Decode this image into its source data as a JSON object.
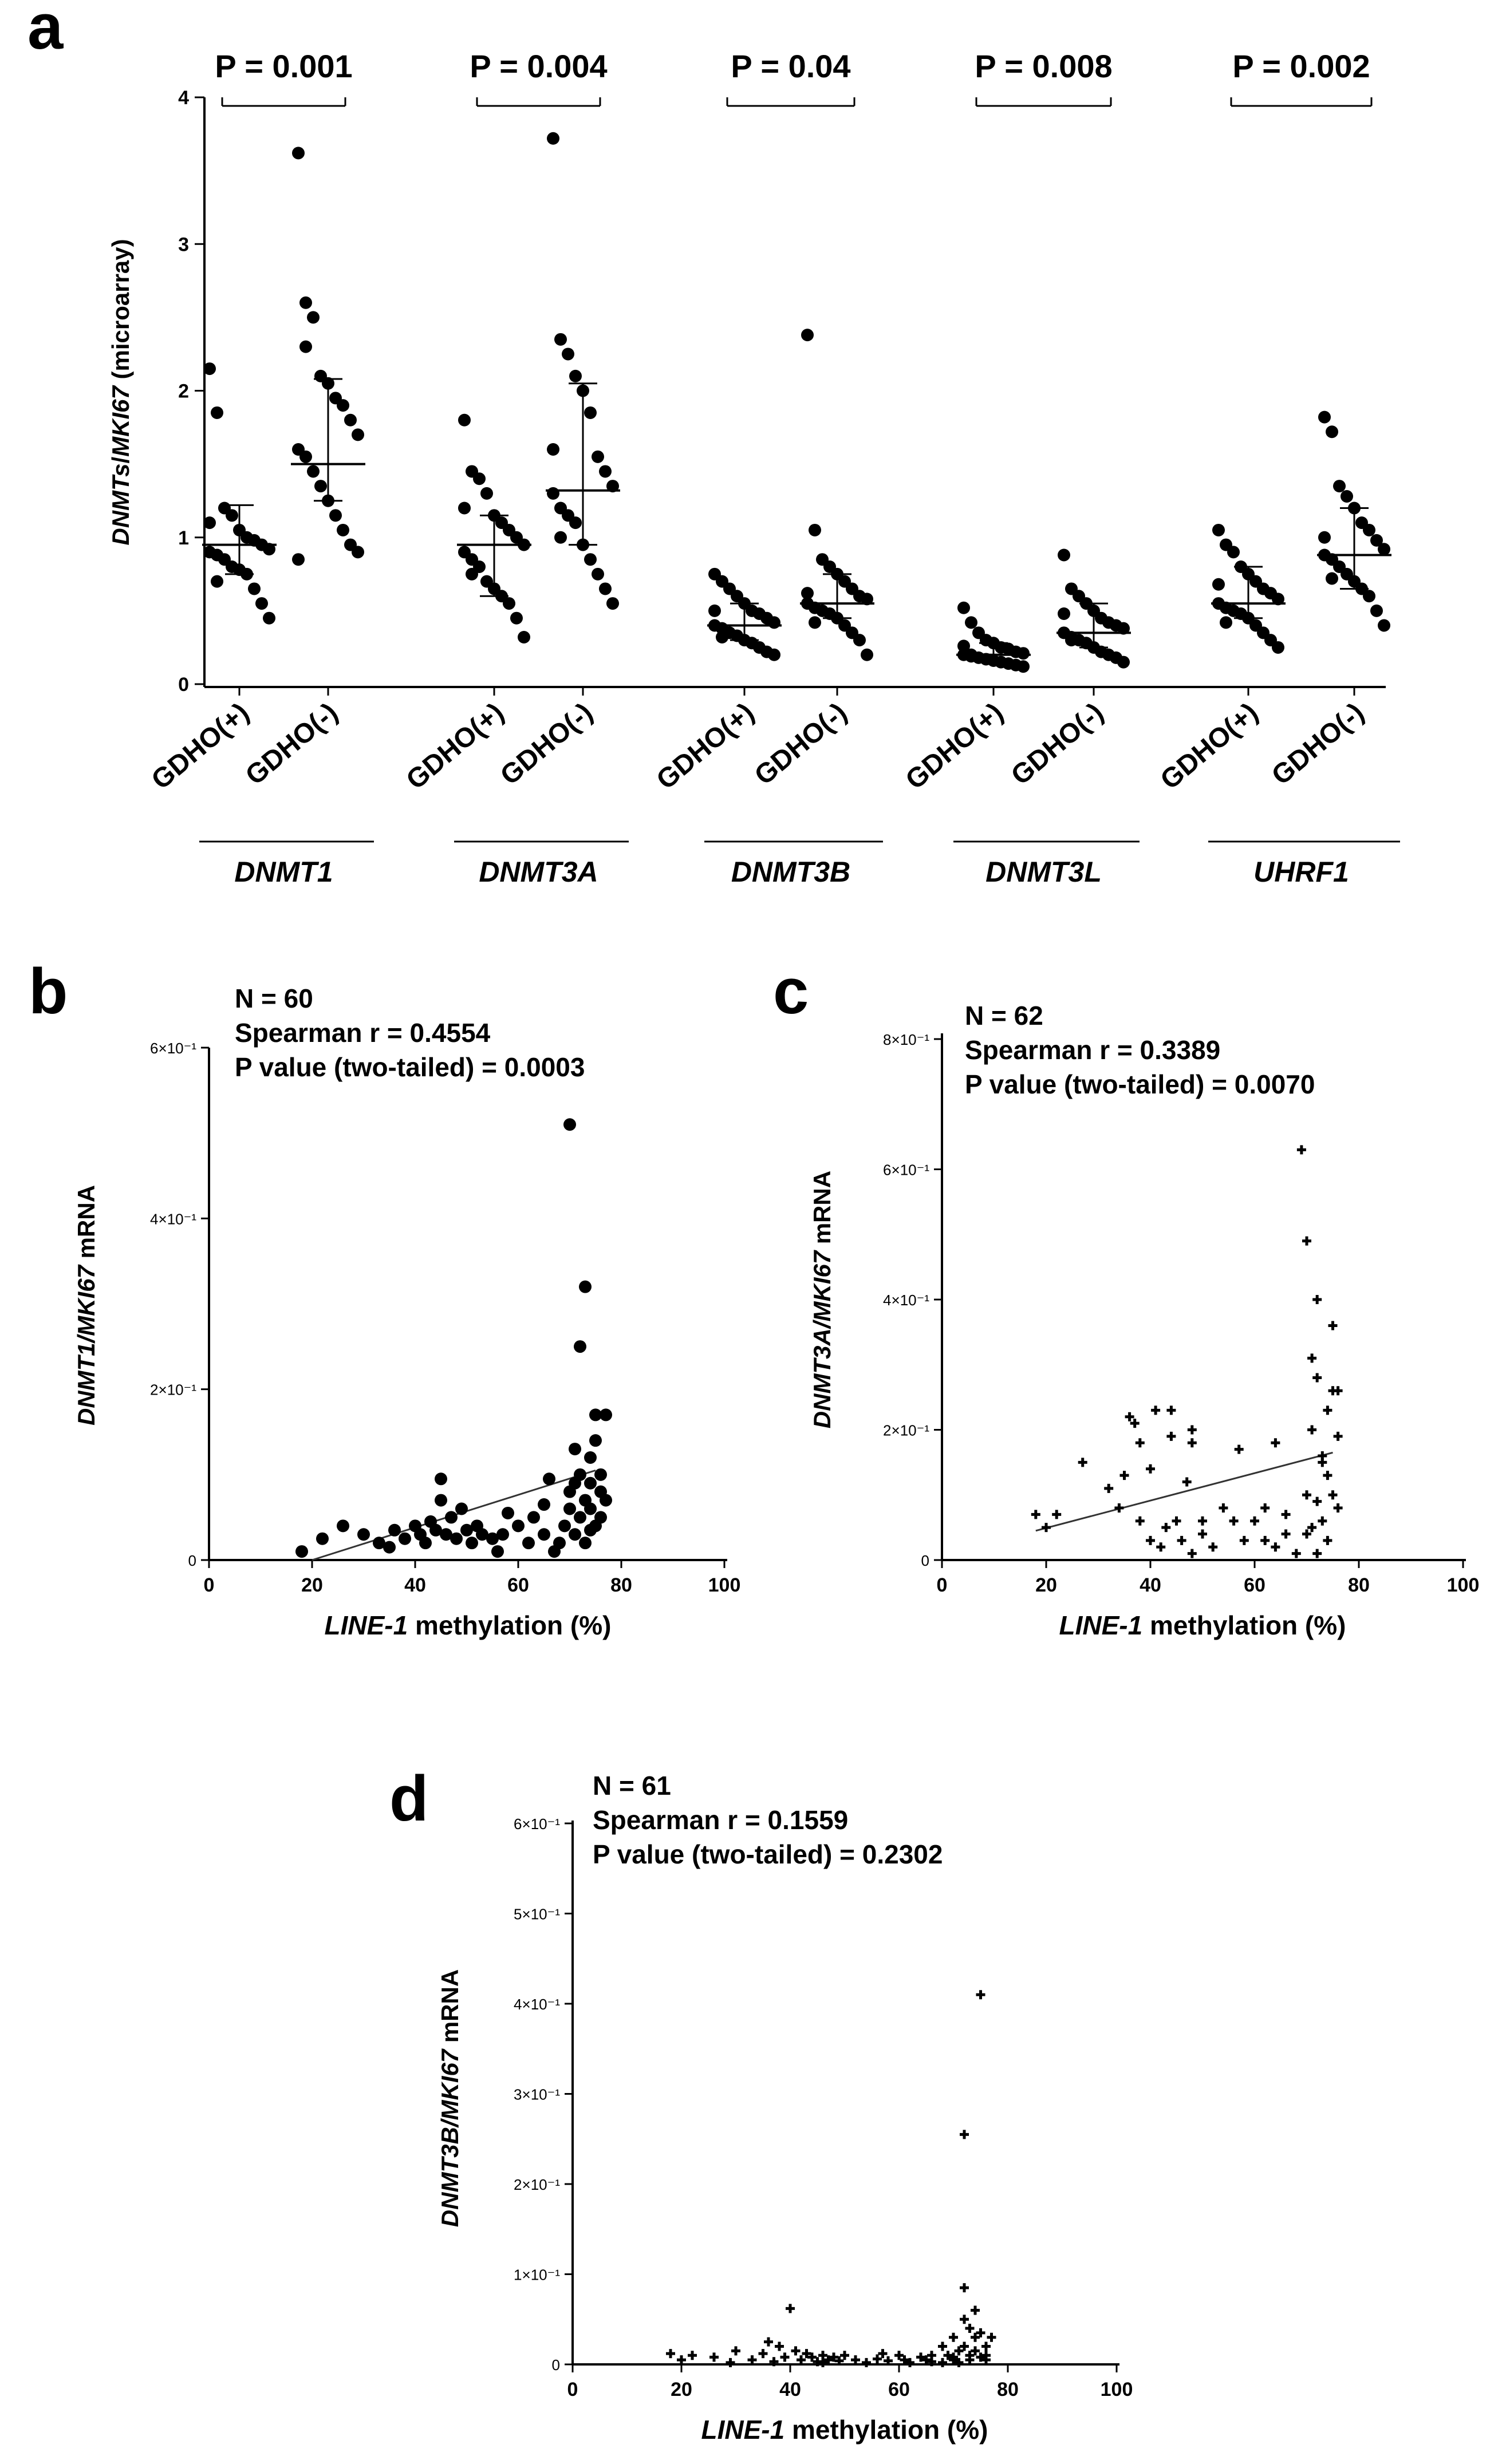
{
  "chart_data": [
    {
      "panel": "a",
      "type": "scatter",
      "ylabel_italic": "DNMTs",
      "ylabel_mid": "/",
      "ylabel_italic2": "MKI67",
      "ylabel_rest": " (microarray)",
      "ylim": [
        0,
        4
      ],
      "yticks": [
        "0",
        "1",
        "2",
        "3",
        "4"
      ],
      "x_tick_labels": [
        "GDHO(+)",
        "GDHO(-)"
      ],
      "groups": [
        {
          "gene": "DNMT1",
          "p": "P = 0.001",
          "pos": [
            2.15,
            1.85,
            1.2,
            1.15,
            1.05,
            1.0,
            0.98,
            0.95,
            0.92,
            0.9,
            0.88,
            0.85,
            0.8,
            0.78,
            0.75,
            0.65,
            0.55,
            0.45,
            1.1,
            0.7
          ],
          "neg": [
            3.62,
            2.6,
            2.5,
            2.1,
            2.05,
            1.95,
            1.9,
            1.8,
            1.7,
            1.6,
            1.55,
            1.45,
            1.35,
            1.25,
            1.15,
            1.05,
            0.95,
            0.9,
            0.85,
            2.3
          ],
          "pos_stats": [
            0.75,
            0.95,
            1.22
          ],
          "neg_stats": [
            1.25,
            1.5,
            2.08
          ]
        },
        {
          "gene": "DNMT3A",
          "p": "P = 0.004",
          "pos": [
            1.8,
            1.45,
            1.4,
            1.3,
            1.15,
            1.1,
            1.05,
            1.0,
            0.95,
            0.9,
            0.85,
            0.8,
            0.7,
            0.65,
            0.6,
            0.55,
            0.45,
            0.32,
            1.2,
            0.75
          ],
          "neg": [
            3.72,
            2.35,
            2.25,
            2.1,
            2.0,
            1.85,
            1.55,
            1.45,
            1.35,
            1.3,
            1.2,
            1.15,
            1.1,
            0.95,
            0.85,
            0.75,
            0.65,
            0.55,
            1.6,
            1.0
          ],
          "pos_stats": [
            0.6,
            0.95,
            1.15
          ],
          "neg_stats": [
            0.95,
            1.32,
            2.05
          ]
        },
        {
          "gene": "DNMT3B",
          "p": "P = 0.04",
          "pos": [
            0.75,
            0.7,
            0.65,
            0.6,
            0.55,
            0.5,
            0.48,
            0.45,
            0.42,
            0.4,
            0.38,
            0.35,
            0.33,
            0.3,
            0.28,
            0.25,
            0.22,
            0.2,
            0.5,
            0.32
          ],
          "neg": [
            2.38,
            1.05,
            0.85,
            0.8,
            0.75,
            0.7,
            0.65,
            0.6,
            0.58,
            0.55,
            0.52,
            0.5,
            0.48,
            0.45,
            0.4,
            0.35,
            0.3,
            0.2,
            0.62,
            0.42
          ],
          "pos_stats": [
            0.3,
            0.4,
            0.55
          ],
          "neg_stats": [
            0.45,
            0.55,
            0.75
          ]
        },
        {
          "gene": "DNMT3L",
          "p": "P = 0.008",
          "pos": [
            0.52,
            0.42,
            0.35,
            0.3,
            0.28,
            0.25,
            0.24,
            0.22,
            0.21,
            0.2,
            0.19,
            0.18,
            0.17,
            0.16,
            0.15,
            0.14,
            0.13,
            0.12,
            0.26,
            0.2
          ],
          "neg": [
            0.88,
            0.65,
            0.6,
            0.55,
            0.5,
            0.45,
            0.42,
            0.4,
            0.38,
            0.35,
            0.32,
            0.3,
            0.28,
            0.25,
            0.22,
            0.2,
            0.18,
            0.15,
            0.48,
            0.3
          ],
          "pos_stats": [
            0.15,
            0.2,
            0.28
          ],
          "neg_stats": [
            0.25,
            0.35,
            0.55
          ]
        },
        {
          "gene": "UHRF1",
          "p": "P = 0.002",
          "pos": [
            1.05,
            0.95,
            0.9,
            0.8,
            0.75,
            0.7,
            0.65,
            0.62,
            0.58,
            0.55,
            0.52,
            0.5,
            0.48,
            0.45,
            0.4,
            0.35,
            0.3,
            0.25,
            0.68,
            0.42
          ],
          "neg": [
            1.82,
            1.72,
            1.35,
            1.28,
            1.2,
            1.1,
            1.05,
            0.98,
            0.92,
            0.88,
            0.85,
            0.8,
            0.75,
            0.7,
            0.65,
            0.6,
            0.5,
            0.4,
            1.0,
            0.72
          ],
          "pos_stats": [
            0.45,
            0.55,
            0.8
          ],
          "neg_stats": [
            0.65,
            0.88,
            1.2
          ]
        }
      ]
    },
    {
      "panel": "b",
      "type": "scatter",
      "stats": [
        "N = 60",
        "Spearman r = 0.4554",
        "P value (two-tailed) = 0.0003"
      ],
      "ylabel_it": "DNMT1/MKI67",
      "ylabel_rest": " mRNA",
      "xlabel_it": "LINE-1",
      "xlabel_rest": " methylation (%)",
      "xlim": [
        0,
        100
      ],
      "ylim": [
        0,
        6
      ],
      "xticks": [
        "0",
        "20",
        "40",
        "60",
        "80",
        "100"
      ],
      "yticks": [
        "0",
        "2×10⁻¹",
        "4×10⁻¹",
        "6×10⁻¹"
      ],
      "trend": [
        [
          20,
          0.0
        ],
        [
          75,
          1.05
        ]
      ],
      "points": [
        [
          18,
          0.1
        ],
        [
          22,
          0.25
        ],
        [
          26,
          0.4
        ],
        [
          30,
          0.3
        ],
        [
          33,
          0.2
        ],
        [
          36,
          0.35
        ],
        [
          38,
          0.25
        ],
        [
          40,
          0.4
        ],
        [
          41,
          0.3
        ],
        [
          42,
          0.2
        ],
        [
          43,
          0.45
        ],
        [
          44,
          0.35
        ],
        [
          45,
          0.95
        ],
        [
          46,
          0.3
        ],
        [
          47,
          0.5
        ],
        [
          48,
          0.25
        ],
        [
          49,
          0.6
        ],
        [
          50,
          0.35
        ],
        [
          51,
          0.2
        ],
        [
          52,
          0.4
        ],
        [
          53,
          0.3
        ],
        [
          55,
          0.25
        ],
        [
          56,
          0.1
        ],
        [
          57,
          0.3
        ],
        [
          60,
          0.4
        ],
        [
          62,
          0.2
        ],
        [
          63,
          0.5
        ],
        [
          65,
          0.3
        ],
        [
          66,
          0.95
        ],
        [
          67,
          0.1
        ],
        [
          68,
          0.2
        ],
        [
          69,
          0.4
        ],
        [
          70,
          0.6
        ],
        [
          70,
          0.8
        ],
        [
          70,
          5.1
        ],
        [
          71,
          0.3
        ],
        [
          71,
          0.9
        ],
        [
          72,
          0.5
        ],
        [
          72,
          1.0
        ],
        [
          72,
          2.5
        ],
        [
          73,
          0.7
        ],
        [
          73,
          3.2
        ],
        [
          73,
          0.2
        ],
        [
          74,
          1.2
        ],
        [
          74,
          0.6
        ],
        [
          74,
          0.9
        ],
        [
          75,
          1.4
        ],
        [
          75,
          0.4
        ],
        [
          75,
          1.7
        ],
        [
          76,
          0.8
        ],
        [
          76,
          0.5
        ],
        [
          76,
          1.0
        ],
        [
          77,
          0.7
        ],
        [
          77,
          1.7
        ],
        [
          74,
          0.35
        ],
        [
          58,
          0.55
        ],
        [
          35,
          0.15
        ],
        [
          45,
          0.7
        ],
        [
          65,
          0.65
        ],
        [
          71,
          1.3
        ]
      ]
    },
    {
      "panel": "c",
      "type": "scatter",
      "stats": [
        "N = 62",
        "Spearman r = 0.3389",
        "P value (two-tailed) = 0.0070"
      ],
      "ylabel_it": "DNMT3A/MKI67",
      "ylabel_rest": " mRNA",
      "xlabel_it": "LINE-1",
      "xlabel_rest": " methylation (%)",
      "xlim": [
        0,
        100
      ],
      "ylim": [
        0,
        8
      ],
      "xticks": [
        "0",
        "20",
        "40",
        "60",
        "80",
        "100"
      ],
      "yticks": [
        "0",
        "2×10⁻¹",
        "4×10⁻¹",
        "6×10⁻¹",
        "8×10⁻¹"
      ],
      "trend": [
        [
          18,
          0.45
        ],
        [
          75,
          1.65
        ]
      ],
      "points": [
        [
          18,
          0.7
        ],
        [
          20,
          0.5
        ],
        [
          22,
          0.7
        ],
        [
          27,
          1.5
        ],
        [
          32,
          1.1
        ],
        [
          34,
          0.8
        ],
        [
          36,
          2.2
        ],
        [
          37,
          2.1
        ],
        [
          38,
          1.8
        ],
        [
          38,
          0.6
        ],
        [
          40,
          1.4
        ],
        [
          40,
          0.3
        ],
        [
          41,
          2.3
        ],
        [
          42,
          0.2
        ],
        [
          43,
          0.5
        ],
        [
          44,
          2.3
        ],
        [
          44,
          1.9
        ],
        [
          45,
          0.6
        ],
        [
          46,
          0.3
        ],
        [
          47,
          1.2
        ],
        [
          48,
          1.8
        ],
        [
          48,
          0.1
        ],
        [
          50,
          0.4
        ],
        [
          50,
          0.6
        ],
        [
          52,
          0.2
        ],
        [
          54,
          0.8
        ],
        [
          56,
          0.6
        ],
        [
          58,
          0.3
        ],
        [
          60,
          0.6
        ],
        [
          62,
          0.3
        ],
        [
          62,
          0.8
        ],
        [
          64,
          1.8
        ],
        [
          64,
          0.2
        ],
        [
          66,
          0.7
        ],
        [
          68,
          0.1
        ],
        [
          69,
          6.3
        ],
        [
          70,
          0.4
        ],
        [
          70,
          1.0
        ],
        [
          70,
          4.9
        ],
        [
          71,
          2.0
        ],
        [
          71,
          0.5
        ],
        [
          71,
          3.1
        ],
        [
          72,
          0.9
        ],
        [
          72,
          2.8
        ],
        [
          72,
          4.0
        ],
        [
          72,
          0.1
        ],
        [
          73,
          1.6
        ],
        [
          73,
          0.6
        ],
        [
          74,
          1.3
        ],
        [
          74,
          2.3
        ],
        [
          74,
          0.3
        ],
        [
          75,
          2.6
        ],
        [
          75,
          3.6
        ],
        [
          75,
          1.0
        ],
        [
          76,
          2.6
        ],
        [
          76,
          0.8
        ],
        [
          76,
          1.9
        ],
        [
          73,
          1.5
        ],
        [
          57,
          1.7
        ],
        [
          35,
          1.3
        ],
        [
          48,
          2.0
        ],
        [
          66,
          0.4
        ]
      ]
    },
    {
      "panel": "d",
      "type": "scatter",
      "stats": [
        "N = 61",
        "Spearman r = 0.1559",
        "P value (two-tailed) = 0.2302"
      ],
      "ylabel_it": "DNMT3B/MKI67",
      "ylabel_rest": " mRNA",
      "xlabel_it": "LINE-1",
      "xlabel_rest": " methylation (%)",
      "xlim": [
        0,
        100
      ],
      "ylim": [
        0,
        6
      ],
      "xticks": [
        "0",
        "20",
        "40",
        "60",
        "80",
        "100"
      ],
      "yticks": [
        "0",
        "1×10⁻¹",
        "2×10⁻¹",
        "3×10⁻¹",
        "4×10⁻¹",
        "5×10⁻¹",
        "6×10⁻¹"
      ],
      "points": [
        [
          18,
          0.12
        ],
        [
          20,
          0.05
        ],
        [
          22,
          0.1
        ],
        [
          26,
          0.08
        ],
        [
          30,
          0.15
        ],
        [
          33,
          0.05
        ],
        [
          35,
          0.12
        ],
        [
          36,
          0.25
        ],
        [
          38,
          0.2
        ],
        [
          39,
          0.08
        ],
        [
          40,
          0.62
        ],
        [
          41,
          0.15
        ],
        [
          42,
          0.05
        ],
        [
          43,
          0.12
        ],
        [
          44,
          0.08
        ],
        [
          45,
          0.03
        ],
        [
          46,
          0.1
        ],
        [
          47,
          0.05
        ],
        [
          48,
          0.08
        ],
        [
          49,
          0.04
        ],
        [
          50,
          0.1
        ],
        [
          52,
          0.05
        ],
        [
          54,
          0.02
        ],
        [
          56,
          0.06
        ],
        [
          58,
          0.04
        ],
        [
          60,
          0.1
        ],
        [
          61,
          0.05
        ],
        [
          62,
          0.02
        ],
        [
          64,
          0.08
        ],
        [
          65,
          0.05
        ],
        [
          66,
          0.03
        ],
        [
          68,
          0.2
        ],
        [
          69,
          0.1
        ],
        [
          70,
          0.05
        ],
        [
          70,
          0.3
        ],
        [
          71,
          0.15
        ],
        [
          71,
          0.02
        ],
        [
          72,
          0.85
        ],
        [
          72,
          0.2
        ],
        [
          72,
          2.55
        ],
        [
          73,
          0.1
        ],
        [
          73,
          0.4
        ],
        [
          73,
          0.05
        ],
        [
          74,
          0.15
        ],
        [
          74,
          0.3
        ],
        [
          75,
          4.1
        ],
        [
          75,
          0.08
        ],
        [
          75,
          0.35
        ],
        [
          76,
          0.2
        ],
        [
          76,
          0.05
        ],
        [
          76,
          0.1
        ],
        [
          77,
          0.3
        ],
        [
          70,
          0.08
        ],
        [
          68,
          0.02
        ],
        [
          57,
          0.12
        ],
        [
          46,
          0.02
        ],
        [
          37,
          0.03
        ],
        [
          29,
          0.02
        ],
        [
          72,
          0.5
        ],
        [
          74,
          0.6
        ],
        [
          66,
          0.1
        ]
      ]
    }
  ],
  "panel_labels": [
    "a",
    "b",
    "c",
    "d"
  ]
}
